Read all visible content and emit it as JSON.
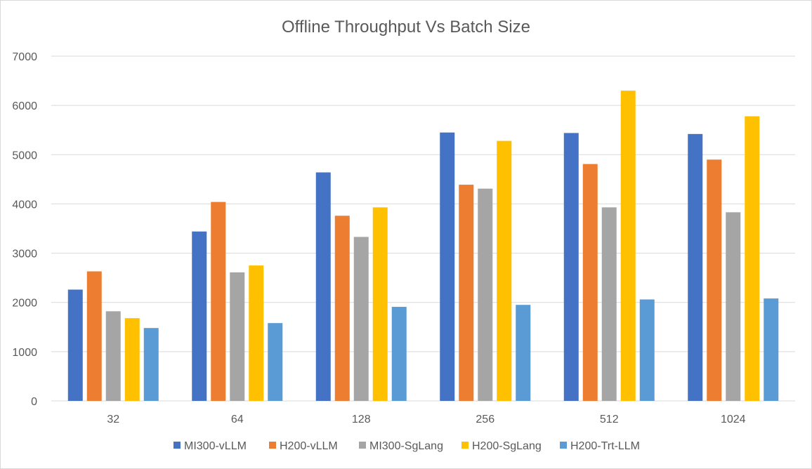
{
  "chart_data": {
    "type": "bar",
    "title": "Offline Throughput Vs Batch Size",
    "xlabel": "",
    "ylabel": "",
    "categories": [
      "32",
      "64",
      "128",
      "256",
      "512",
      "1024"
    ],
    "ylim": [
      0,
      7000
    ],
    "yticks": [
      0,
      1000,
      2000,
      3000,
      4000,
      5000,
      6000,
      7000
    ],
    "grid": true,
    "legend_position": "bottom",
    "series": [
      {
        "name": "MI300-vLLM",
        "color": "#4472c4",
        "values": [
          2260,
          3440,
          4640,
          5450,
          5440,
          5420
        ]
      },
      {
        "name": "H200-vLLM",
        "color": "#ed7d31",
        "values": [
          2630,
          4040,
          3760,
          4390,
          4810,
          4900
        ]
      },
      {
        "name": "MI300-SgLang",
        "color": "#a5a5a5",
        "values": [
          1820,
          2610,
          3330,
          4310,
          3930,
          3830
        ]
      },
      {
        "name": "H200-SgLang",
        "color": "#ffc000",
        "values": [
          1680,
          2750,
          3930,
          5280,
          6300,
          5780
        ]
      },
      {
        "name": "H200-Trt-LLM",
        "color": "#5b9bd5",
        "values": [
          1480,
          1580,
          1910,
          1950,
          2060,
          2080
        ]
      }
    ]
  }
}
